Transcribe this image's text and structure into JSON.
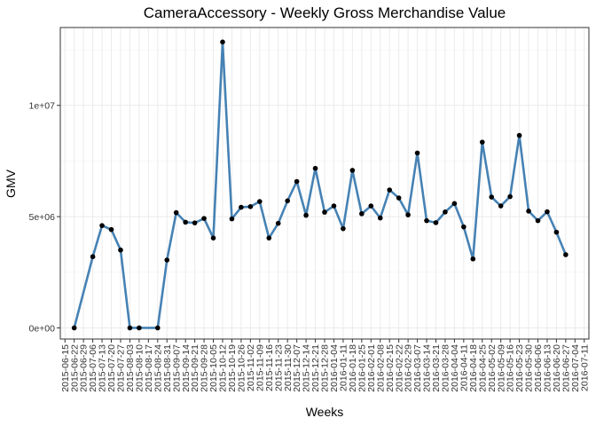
{
  "chart_data": {
    "type": "line",
    "title": "CameraAccessory - Weekly Gross Merchandise Value",
    "xlabel": "Weeks",
    "ylabel": "GMV",
    "x_categories": [
      "2015-06-15",
      "2015-06-22",
      "2015-06-29",
      "2015-07-06",
      "2015-07-13",
      "2015-07-20",
      "2015-07-27",
      "2015-08-03",
      "2015-08-10",
      "2015-08-17",
      "2015-08-24",
      "2015-08-31",
      "2015-09-07",
      "2015-09-14",
      "2015-09-21",
      "2015-09-28",
      "2015-10-05",
      "2015-10-12",
      "2015-10-19",
      "2015-10-26",
      "2015-11-02",
      "2015-11-09",
      "2015-11-16",
      "2015-11-23",
      "2015-11-30",
      "2015-12-07",
      "2015-12-14",
      "2015-12-21",
      "2015-12-28",
      "2016-01-04",
      "2016-01-11",
      "2016-01-18",
      "2016-01-25",
      "2016-02-01",
      "2016-02-08",
      "2016-02-15",
      "2016-02-22",
      "2016-02-29",
      "2016-03-07",
      "2016-03-14",
      "2016-03-21",
      "2016-03-28",
      "2016-04-04",
      "2016-04-11",
      "2016-04-18",
      "2016-04-25",
      "2016-05-02",
      "2016-05-09",
      "2016-05-16",
      "2016-05-23",
      "2016-05-30",
      "2016-06-06",
      "2016-06-13",
      "2016-06-20",
      "2016-06-27",
      "2016-07-04",
      "2016-07-11"
    ],
    "x_tick_labels": [
      "2015-06-15",
      "2015-06-22",
      "2015-06-29",
      "2015-07-06",
      "2015-07-13",
      "2015-07-20",
      "2015-07-27",
      "2015-08-03",
      "2015-08-10",
      "2015-08-17",
      "2015-08-24",
      "2015-08-31",
      "2015-09-07",
      "2015-09-14",
      "2015-09-21",
      "2015-09-28",
      "2015-10-05",
      "2015-10-12",
      "2015-10-19",
      "2015-10-26",
      "2015-11-02",
      "2015-11-09",
      "2015-11-16",
      "2015-11-23",
      "2015-11-30",
      "2015-12-07",
      "2015-12-14",
      "2015-12-21",
      "2015-12-28",
      "2016-01-04",
      "2016-01-11",
      "2016-01-18",
      "2016-01-25",
      "2016-02-01",
      "2016-02-08",
      "2016-02-15",
      "2016-02-22",
      "2016-02-29",
      "2016-03-07",
      "2016-03-14",
      "2016-03-21",
      "2016-03-28",
      "2016-04-04",
      "2016-04-11",
      "2016-04-18",
      "2016-04-25",
      "2016-05-02",
      "2016-05-09",
      "2016-05-16",
      "2016-05-23",
      "2016-05-30",
      "2016-06-06",
      "2016-06-13",
      "2016-06-20",
      "2016-06-27",
      "2016-07-04",
      "2016-07-11"
    ],
    "series": [
      {
        "color": "#4682b4",
        "x": [
          "2015-06-22",
          "2015-07-06",
          "2015-07-13",
          "2015-07-20",
          "2015-07-27",
          "2015-08-03",
          "2015-08-10",
          "2015-08-24",
          "2015-08-31",
          "2015-09-07",
          "2015-09-14",
          "2015-09-21",
          "2015-09-28",
          "2015-10-05",
          "2015-10-12",
          "2015-10-19",
          "2015-10-26",
          "2015-11-02",
          "2015-11-09",
          "2015-11-16",
          "2015-11-23",
          "2015-11-30",
          "2015-12-07",
          "2015-12-14",
          "2015-12-21",
          "2015-12-28",
          "2016-01-04",
          "2016-01-11",
          "2016-01-18",
          "2016-01-25",
          "2016-02-01",
          "2016-02-08",
          "2016-02-15",
          "2016-02-22",
          "2016-02-29",
          "2016-03-07",
          "2016-03-14",
          "2016-03-21",
          "2016-03-28",
          "2016-04-04",
          "2016-04-11",
          "2016-04-18",
          "2016-04-25",
          "2016-05-02",
          "2016-05-09",
          "2016-05-16",
          "2016-05-23",
          "2016-05-30",
          "2016-06-06",
          "2016-06-13",
          "2016-06-20",
          "2016-06-27"
        ],
        "values": [
          0,
          3200000,
          4600000,
          4420000,
          3500000,
          0,
          0,
          0,
          3050000,
          5180000,
          4750000,
          4720000,
          4920000,
          4040000,
          12850000,
          4900000,
          5420000,
          5450000,
          5680000,
          4040000,
          4700000,
          5710000,
          6580000,
          5060000,
          7170000,
          5200000,
          5480000,
          4460000,
          7080000,
          5130000,
          5480000,
          4940000,
          6200000,
          5840000,
          5080000,
          7860000,
          4820000,
          4730000,
          5210000,
          5590000,
          4540000,
          3100000,
          8350000,
          5880000,
          5480000,
          5900000,
          8650000,
          5250000,
          4820000,
          5220000,
          4300000,
          3290000
        ]
      }
    ],
    "y_ticks": [
      0,
      5000000,
      10000000
    ],
    "y_tick_labels": [
      "0e+00",
      "5e+06",
      "1e+07"
    ],
    "ylim": [
      -500000,
      13500000
    ],
    "grid": true,
    "legend": "none",
    "point_color": "#000000",
    "colors": {
      "line": "#4682b4",
      "grid": "#ebebeb",
      "panel_border": "#333333"
    }
  }
}
